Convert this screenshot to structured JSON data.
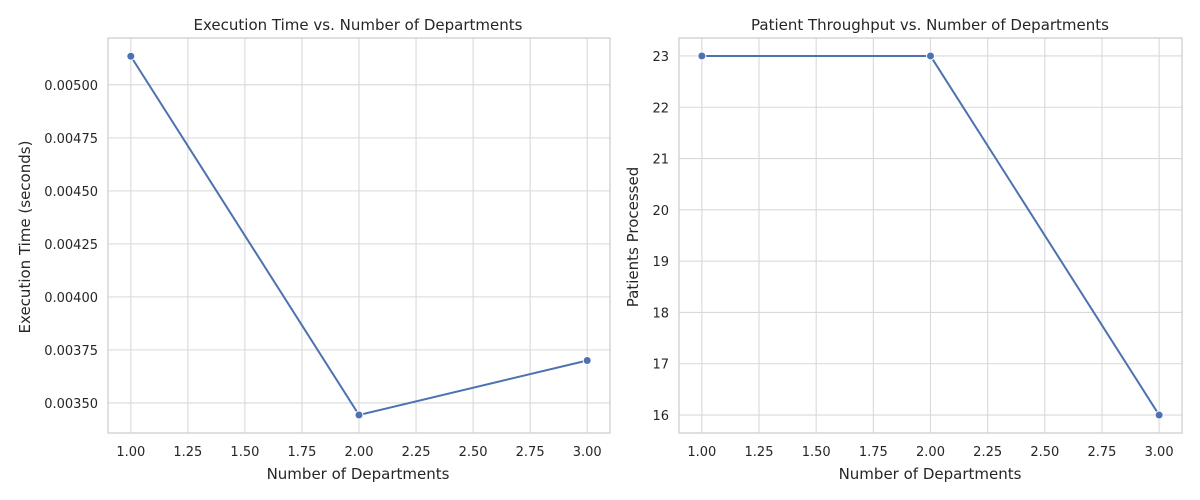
{
  "theme": {
    "grid_color": "#d9d9d9",
    "frame_color": "#cccccc",
    "series_color": "#4c72b0",
    "text_color": "#262626"
  },
  "chart_data": [
    {
      "type": "line",
      "title": "Execution Time vs. Number of Departments",
      "xlabel": "Number of Departments",
      "ylabel": "Execution Time (seconds)",
      "xlim": [
        0.9,
        3.1
      ],
      "ylim": [
        0.003358,
        0.005221
      ],
      "grid": true,
      "legend": "none",
      "x": [
        1.0,
        2.0,
        3.0
      ],
      "series": [
        {
          "values": [
            0.005135,
            0.003443,
            0.0037
          ]
        }
      ],
      "x_ticks": [
        {
          "value": 1.0,
          "label": "1.00"
        },
        {
          "value": 1.25,
          "label": "1.25"
        },
        {
          "value": 1.5,
          "label": "1.50"
        },
        {
          "value": 1.75,
          "label": "1.75"
        },
        {
          "value": 2.0,
          "label": "2.00"
        },
        {
          "value": 2.25,
          "label": "2.25"
        },
        {
          "value": 2.5,
          "label": "2.50"
        },
        {
          "value": 2.75,
          "label": "2.75"
        },
        {
          "value": 3.0,
          "label": "3.00"
        }
      ],
      "y_ticks": [
        {
          "value": 0.0035,
          "label": "0.00350"
        },
        {
          "value": 0.00375,
          "label": "0.00375"
        },
        {
          "value": 0.004,
          "label": "0.00400"
        },
        {
          "value": 0.00425,
          "label": "0.00425"
        },
        {
          "value": 0.0045,
          "label": "0.00450"
        },
        {
          "value": 0.00475,
          "label": "0.00475"
        },
        {
          "value": 0.005,
          "label": "0.00500"
        }
      ]
    },
    {
      "type": "line",
      "title": "Patient Throughput vs. Number of Departments",
      "xlabel": "Number of Departments",
      "ylabel": "Patients Processed",
      "xlim": [
        0.9,
        3.1
      ],
      "ylim": [
        15.65,
        23.35
      ],
      "grid": true,
      "legend": "none",
      "x": [
        1.0,
        2.0,
        3.0
      ],
      "series": [
        {
          "values": [
            23,
            23,
            16
          ]
        }
      ],
      "x_ticks": [
        {
          "value": 1.0,
          "label": "1.00"
        },
        {
          "value": 1.25,
          "label": "1.25"
        },
        {
          "value": 1.5,
          "label": "1.50"
        },
        {
          "value": 1.75,
          "label": "1.75"
        },
        {
          "value": 2.0,
          "label": "2.00"
        },
        {
          "value": 2.25,
          "label": "2.25"
        },
        {
          "value": 2.5,
          "label": "2.50"
        },
        {
          "value": 2.75,
          "label": "2.75"
        },
        {
          "value": 3.0,
          "label": "3.00"
        }
      ],
      "y_ticks": [
        {
          "value": 16,
          "label": "16"
        },
        {
          "value": 17,
          "label": "17"
        },
        {
          "value": 18,
          "label": "18"
        },
        {
          "value": 19,
          "label": "19"
        },
        {
          "value": 20,
          "label": "20"
        },
        {
          "value": 21,
          "label": "21"
        },
        {
          "value": 22,
          "label": "22"
        },
        {
          "value": 23,
          "label": "23"
        }
      ]
    }
  ]
}
